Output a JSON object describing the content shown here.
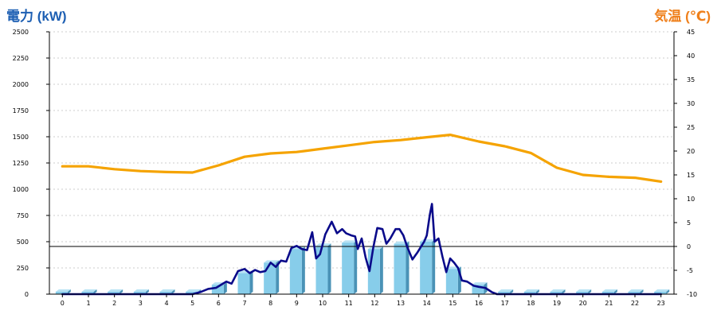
{
  "left_axis_title": "電力 (kW)",
  "right_axis_title": "気温 (℃)",
  "colors": {
    "left_title": "#1d5fb3",
    "right_title": "#ef7f1a",
    "bar_front": "#87cdea",
    "bar_side": "#4a92b6",
    "bar_top": "#b7e2f4",
    "power_line": "#0a0a8a",
    "temp_line": "#f5a300",
    "grid": "#bdbdbd",
    "axis": "#000000"
  },
  "chart_data": {
    "type": "bar+line",
    "x_ticks": [
      "0",
      "1",
      "2",
      "3",
      "4",
      "5",
      "6",
      "7",
      "8",
      "9",
      "10",
      "11",
      "12",
      "13",
      "14",
      "15",
      "16",
      "17",
      "18",
      "19",
      "20",
      "21",
      "22",
      "23"
    ],
    "y_left": {
      "min": 0,
      "max": 2500,
      "ticks": [
        0,
        250,
        500,
        750,
        1000,
        1250,
        1500,
        1750,
        2000,
        2250,
        2500
      ]
    },
    "y_right": {
      "min": -10,
      "max": 45,
      "ticks": [
        -10,
        -5,
        0,
        5,
        10,
        15,
        20,
        25,
        30,
        35,
        40,
        45
      ]
    },
    "grid": "horizontal dotted",
    "reference_line_right_axis": 0,
    "bars": {
      "axis": "left",
      "values": [
        0,
        0,
        0,
        0,
        0,
        0,
        90,
        200,
        300,
        430,
        460,
        490,
        430,
        480,
        500,
        240,
        90,
        0,
        0,
        0,
        0,
        0,
        0,
        0
      ]
    },
    "power_line": {
      "axis": "left",
      "points": [
        [
          0,
          0
        ],
        [
          1,
          0
        ],
        [
          2,
          0
        ],
        [
          3,
          0
        ],
        [
          4,
          0
        ],
        [
          5,
          0
        ],
        [
          5.3,
          20
        ],
        [
          5.6,
          50
        ],
        [
          5.9,
          60
        ],
        [
          6.1,
          90
        ],
        [
          6.3,
          120
        ],
        [
          6.5,
          100
        ],
        [
          6.75,
          220
        ],
        [
          7.0,
          240
        ],
        [
          7.2,
          200
        ],
        [
          7.4,
          230
        ],
        [
          7.6,
          210
        ],
        [
          7.8,
          220
        ],
        [
          8.0,
          300
        ],
        [
          8.2,
          260
        ],
        [
          8.4,
          320
        ],
        [
          8.6,
          310
        ],
        [
          8.8,
          440
        ],
        [
          9.0,
          460
        ],
        [
          9.2,
          430
        ],
        [
          9.4,
          420
        ],
        [
          9.6,
          590
        ],
        [
          9.75,
          340
        ],
        [
          9.9,
          380
        ],
        [
          10.1,
          570
        ],
        [
          10.35,
          690
        ],
        [
          10.55,
          580
        ],
        [
          10.75,
          620
        ],
        [
          10.9,
          580
        ],
        [
          11.1,
          560
        ],
        [
          11.25,
          550
        ],
        [
          11.35,
          430
        ],
        [
          11.5,
          530
        ],
        [
          11.65,
          350
        ],
        [
          11.8,
          220
        ],
        [
          11.95,
          450
        ],
        [
          12.1,
          630
        ],
        [
          12.3,
          620
        ],
        [
          12.45,
          480
        ],
        [
          12.6,
          530
        ],
        [
          12.8,
          620
        ],
        [
          12.95,
          620
        ],
        [
          13.1,
          560
        ],
        [
          13.25,
          450
        ],
        [
          13.45,
          330
        ],
        [
          13.65,
          400
        ],
        [
          13.9,
          500
        ],
        [
          14.0,
          560
        ],
        [
          14.12,
          760
        ],
        [
          14.2,
          860
        ],
        [
          14.3,
          500
        ],
        [
          14.45,
          530
        ],
        [
          14.6,
          360
        ],
        [
          14.75,
          210
        ],
        [
          14.9,
          340
        ],
        [
          15.05,
          300
        ],
        [
          15.2,
          250
        ],
        [
          15.35,
          130
        ],
        [
          15.55,
          120
        ],
        [
          15.8,
          80
        ],
        [
          16.0,
          70
        ],
        [
          16.25,
          60
        ],
        [
          16.5,
          20
        ],
        [
          16.7,
          0
        ],
        [
          17,
          0
        ],
        [
          18,
          0
        ],
        [
          19,
          0
        ],
        [
          20,
          0
        ],
        [
          21,
          0
        ],
        [
          22,
          0
        ],
        [
          23,
          0
        ]
      ]
    },
    "temperature_line": {
      "axis": "right",
      "points": [
        [
          0,
          16.8
        ],
        [
          1,
          16.8
        ],
        [
          2,
          16.2
        ],
        [
          3,
          15.8
        ],
        [
          4,
          15.6
        ],
        [
          5,
          15.5
        ],
        [
          6,
          17.0
        ],
        [
          7,
          18.8
        ],
        [
          8,
          19.5
        ],
        [
          9,
          19.8
        ],
        [
          10,
          20.5
        ],
        [
          11,
          21.2
        ],
        [
          12,
          21.9
        ],
        [
          13,
          22.3
        ],
        [
          14,
          22.9
        ],
        [
          14.9,
          23.4
        ],
        [
          16,
          22.0
        ],
        [
          17,
          21.0
        ],
        [
          18,
          19.6
        ],
        [
          19,
          16.5
        ],
        [
          20,
          15.0
        ],
        [
          21,
          14.6
        ],
        [
          22,
          14.4
        ],
        [
          22.5,
          14.0
        ],
        [
          23,
          13.6
        ]
      ]
    }
  }
}
